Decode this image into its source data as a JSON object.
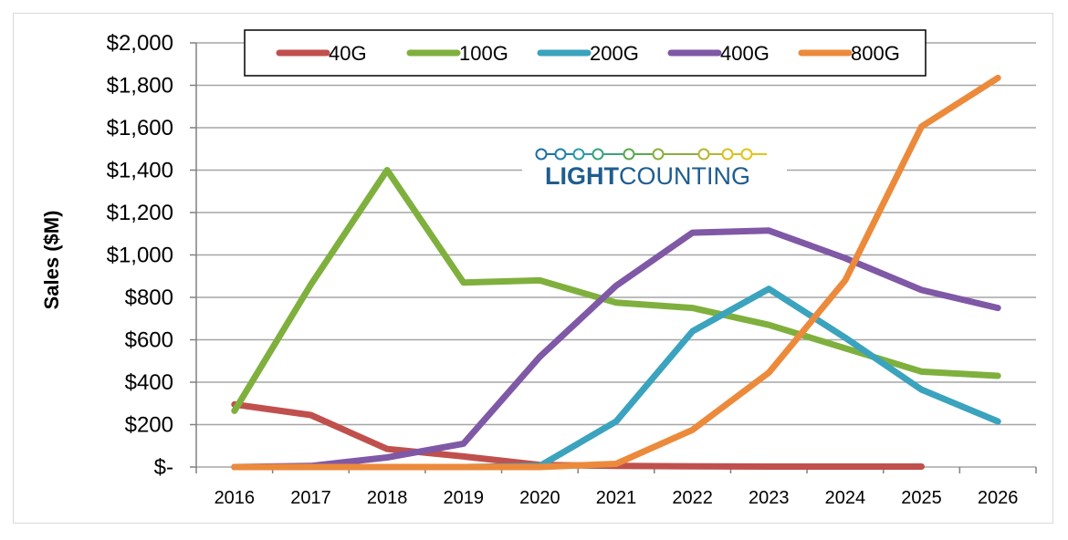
{
  "chart_data": {
    "type": "line",
    "title": "",
    "xlabel": "",
    "ylabel": "Sales ($M)",
    "x": [
      "2016",
      "2017",
      "2018",
      "2019",
      "2020",
      "2021",
      "2022",
      "2023",
      "2024",
      "2025",
      "2026"
    ],
    "ylim": [
      0,
      2000
    ],
    "yticks": [
      0,
      200,
      400,
      600,
      800,
      1000,
      1200,
      1400,
      1600,
      1800,
      2000
    ],
    "ytick_labels": [
      "$-",
      "$200",
      "$400",
      "$600",
      "$800",
      "$1,000",
      "$1,200",
      "$1,400",
      "$1,600",
      "$1,800",
      "$2,000"
    ],
    "grid": "horizontal",
    "legend_position": "top",
    "series": [
      {
        "name": "40G",
        "color": "#c0504d",
        "values": [
          295,
          245,
          85,
          50,
          10,
          5,
          3,
          2,
          2,
          2,
          null
        ]
      },
      {
        "name": "100G",
        "color": "#7fb03e",
        "values": [
          265,
          860,
          1400,
          870,
          880,
          775,
          750,
          670,
          560,
          450,
          430
        ]
      },
      {
        "name": "200G",
        "color": "#3ba3be",
        "values": [
          0,
          0,
          0,
          0,
          5,
          215,
          640,
          840,
          610,
          365,
          215
        ]
      },
      {
        "name": "400G",
        "color": "#7f58a6",
        "values": [
          0,
          5,
          45,
          110,
          520,
          855,
          1105,
          1115,
          985,
          835,
          750
        ]
      },
      {
        "name": "800G",
        "color": "#ec8a3c",
        "values": [
          0,
          0,
          0,
          0,
          0,
          15,
          175,
          445,
          880,
          1605,
          1835
        ]
      }
    ],
    "logo": {
      "text_bold": "LIGHT",
      "text_regular": "COUNTING"
    }
  }
}
